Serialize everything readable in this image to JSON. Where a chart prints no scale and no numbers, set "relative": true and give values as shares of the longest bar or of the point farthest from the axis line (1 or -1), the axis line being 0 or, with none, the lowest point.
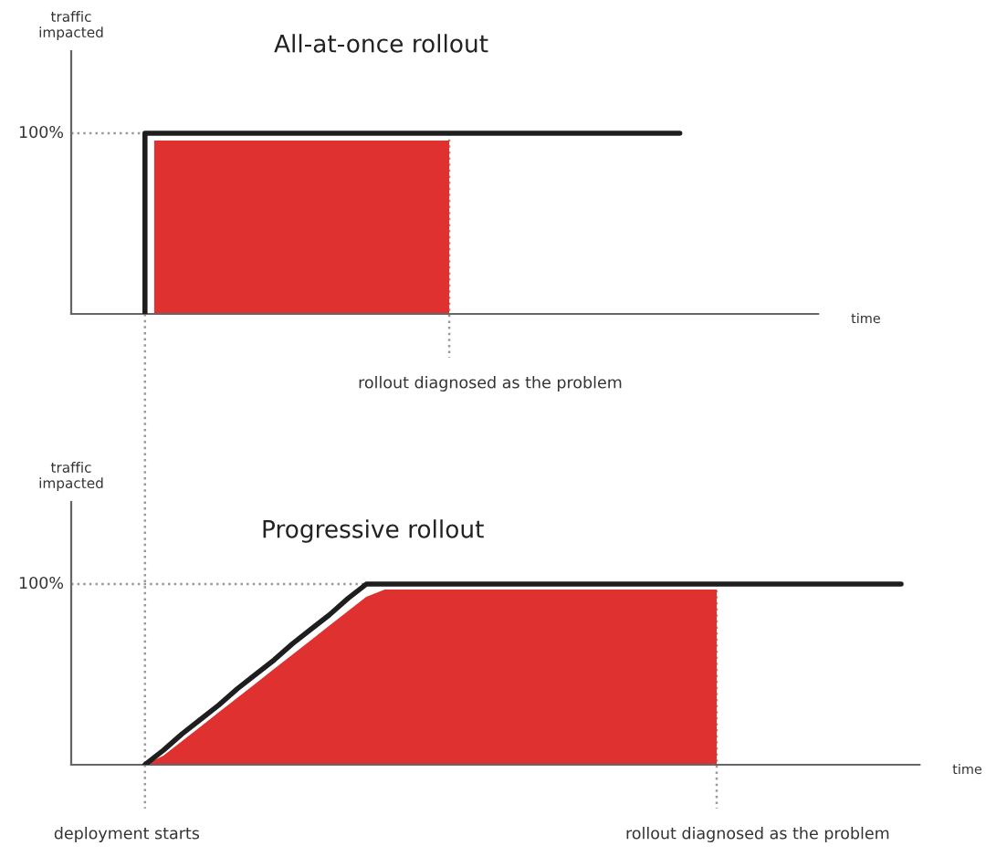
{
  "chart_data": [
    {
      "type": "step",
      "title": "All-at-once rollout",
      "xlabel": "time",
      "ylabel": "traffic\nimpacted",
      "relative": true,
      "categories": [
        null,
        null,
        null,
        null,
        null,
        null,
        null,
        null,
        null,
        null,
        null,
        null,
        null,
        null,
        null,
        null,
        null,
        null,
        null,
        null,
        null,
        null,
        null,
        null,
        null,
        null,
        null,
        null,
        null,
        null,
        null,
        null,
        null,
        null,
        null,
        null,
        null,
        null,
        null,
        null,
        null,
        null,
        null,
        null,
        null,
        null,
        null,
        null,
        null,
        null,
        null,
        null,
        null,
        null,
        null,
        null,
        null,
        null,
        null,
        null,
        null,
        null,
        null,
        null,
        null,
        null,
        null,
        null,
        null,
        null,
        null,
        null,
        null,
        null,
        null,
        null,
        null,
        null,
        null,
        null,
        null,
        null
      ],
      "series": [
        {
          "type": "area",
          "color": "#e03131",
          "values": [
            null,
            null,
            null,
            null,
            null,
            null,
            null,
            null,
            null,
            0.96,
            0.96,
            0.96,
            0.96,
            0.96,
            0.96,
            0.96,
            0.96,
            0.96,
            0.96,
            0.96,
            0.96,
            0.96,
            0.96,
            0.96,
            0.96,
            0.96,
            0.96,
            0.96,
            0.96,
            0.96,
            0.96,
            0.96,
            0.96,
            0.96,
            0.96,
            0.96,
            0.96,
            0.96,
            0.96,
            0.96,
            0.96,
            0.96,
            null,
            null,
            null,
            null,
            null,
            null,
            null,
            null,
            null,
            null,
            null,
            null,
            null,
            null,
            null,
            null,
            null,
            null,
            null,
            null,
            null,
            null,
            null,
            null,
            null,
            null,
            null,
            null,
            null,
            null,
            null,
            null,
            null,
            null,
            null,
            null,
            null,
            null,
            null,
            null
          ]
        },
        {
          "color": "#1e1e1e",
          "values": [
            null,
            null,
            null,
            null,
            null,
            null,
            null,
            null,
            0,
            1,
            1,
            1,
            1,
            1,
            1,
            1,
            1,
            1,
            1,
            1,
            1,
            1,
            1,
            1,
            1,
            1,
            1,
            1,
            1,
            1,
            1,
            1,
            1,
            1,
            1,
            1,
            1,
            1,
            1,
            1,
            1,
            1,
            1,
            1,
            1,
            1,
            1,
            1,
            1,
            1,
            1,
            1,
            1,
            1,
            1,
            1,
            1,
            1,
            1,
            1,
            1,
            1,
            1,
            1,
            1,
            1,
            1,
            null,
            null,
            null,
            null,
            null,
            null,
            null,
            null,
            null,
            null,
            null,
            null,
            null,
            null,
            null
          ]
        }
      ],
      "ref_lines": [
        {
          "axis": "y",
          "value": 1,
          "label": "100%",
          "color": "#9a9a9a",
          "line_style": "dotted"
        }
      ],
      "annotations": [
        "rollout diagnosed as the problem"
      ]
    },
    {
      "type": "line",
      "title": "Progressive rollout",
      "xlabel": "time",
      "ylabel": "traffic\nimpacted",
      "relative": true,
      "categories": [
        null,
        null,
        null,
        null,
        null,
        null,
        null,
        null,
        null,
        null,
        null,
        null,
        null,
        null,
        null,
        null,
        null,
        null,
        null,
        null,
        null,
        null,
        null,
        null,
        null,
        null,
        null,
        null,
        null,
        null,
        null,
        null,
        null,
        null,
        null,
        null,
        null,
        null,
        null,
        null,
        null,
        null,
        null,
        null,
        null,
        null,
        null
      ],
      "series": [
        {
          "type": "area",
          "color": "#e03131",
          "values": [
            null,
            null,
            null,
            null,
            0,
            0.05,
            0.13,
            0.21,
            0.29,
            0.37,
            0.45,
            0.53,
            0.61,
            0.69,
            0.77,
            0.85,
            0.93,
            0.97,
            0.97,
            0.97,
            0.97,
            0.97,
            0.97,
            0.97,
            0.97,
            0.97,
            0.97,
            0.97,
            0.97,
            0.97,
            0.97,
            0.97,
            0.97,
            0.97,
            0.97,
            0.97,
            null,
            null,
            null,
            null,
            null,
            null,
            null,
            null,
            null,
            null,
            null
          ]
        },
        {
          "color": "#1e1e1e",
          "values": [
            null,
            null,
            null,
            null,
            0,
            0.08,
            0.17,
            0.25,
            0.33,
            0.42,
            0.5,
            0.58,
            0.67,
            0.75,
            0.83,
            0.92,
            1,
            1,
            1,
            1,
            1,
            1,
            1,
            1,
            1,
            1,
            1,
            1,
            1,
            1,
            1,
            1,
            1,
            1,
            1,
            1,
            1,
            1,
            1,
            1,
            1,
            1,
            1,
            1,
            1,
            1,
            null
          ]
        }
      ],
      "ref_lines": [
        {
          "axis": "y",
          "value": 1,
          "label": "100%",
          "color": "#9a9a9a",
          "line_style": "dotted"
        }
      ],
      "annotations": [
        "deployment starts",
        "rollout diagnosed as the problem"
      ]
    }
  ]
}
